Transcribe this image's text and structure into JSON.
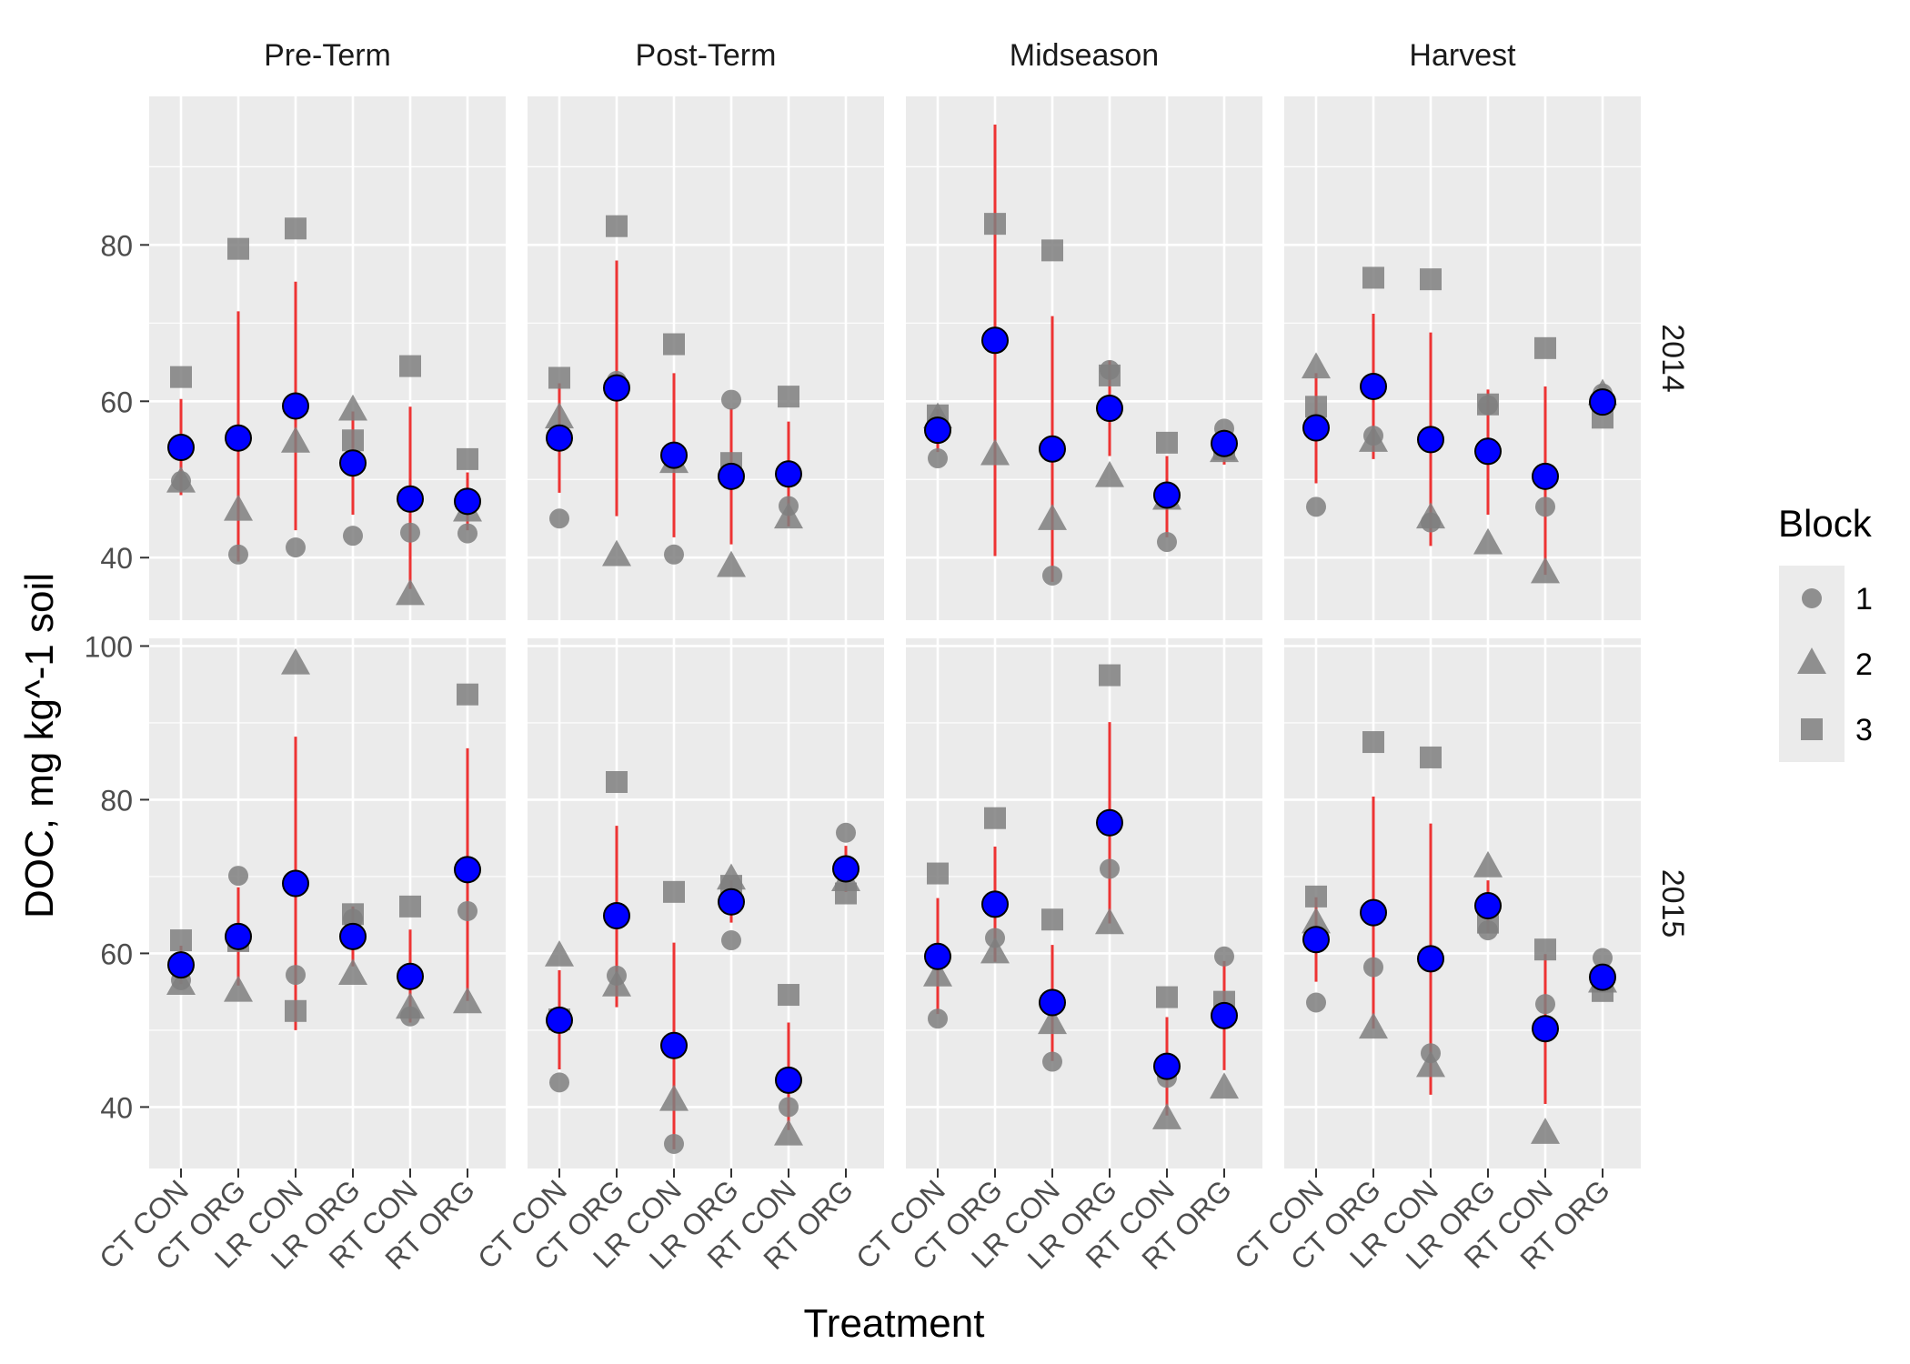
{
  "chart_data": {
    "type": "scatter",
    "title": "",
    "xlabel": "Treatment",
    "ylabel": "DOC, mg kg^-1 soil",
    "categories": [
      "CT CON",
      "CT ORG",
      "LR CON",
      "LR ORG",
      "RT CON",
      "RT ORG"
    ],
    "facet_columns": [
      "Pre-Term",
      "Post-Term",
      "Midseason",
      "Harvest"
    ],
    "facet_rows": [
      "2014",
      "2015"
    ],
    "row_ylim": {
      "2014": [
        32,
        99
      ],
      "2015": [
        32,
        101
      ]
    },
    "row_yticks": {
      "2014": [
        40,
        60,
        80
      ],
      "2015": [
        40,
        60,
        80,
        100
      ]
    },
    "grid": true,
    "legend": {
      "title": "Block",
      "position": "right",
      "entries": [
        {
          "label": "1",
          "shape": "circle"
        },
        {
          "label": "2",
          "shape": "triangle"
        },
        {
          "label": "3",
          "shape": "square"
        }
      ]
    },
    "colors": {
      "panel_background": "#ebebeb",
      "grid": "#ffffff",
      "block_points": "#7f7f7f",
      "mean_fill": "#0000ff",
      "error_bar": "#ee3333"
    },
    "panels": [
      {
        "row": "2014",
        "column": "Pre-Term",
        "block1": [
          49.8,
          40.4,
          41.3,
          42.8,
          43.2,
          43.1
        ],
        "block2": [
          49.6,
          46.0,
          54.7,
          58.8,
          35.2,
          45.9
        ],
        "block3": [
          63.1,
          79.5,
          82.1,
          55.0,
          64.5,
          52.6
        ],
        "mean": [
          54.1,
          55.3,
          59.4,
          52.1,
          47.5,
          47.2
        ],
        "lower": [
          48.0,
          39.5,
          43.5,
          45.5,
          36.0,
          43.5
        ],
        "upper": [
          60.3,
          71.5,
          75.3,
          58.7,
          59.3,
          50.9
        ]
      },
      {
        "row": "2014",
        "column": "Post-Term",
        "block1": [
          45.0,
          62.6,
          40.4,
          60.2,
          46.6,
          null
        ],
        "block2": [
          57.8,
          40.2,
          52.1,
          38.8,
          45.0,
          null
        ],
        "block3": [
          63.0,
          82.4,
          67.3,
          52.1,
          60.6,
          null
        ],
        "mean": [
          55.3,
          61.7,
          53.1,
          50.4,
          50.7,
          null
        ],
        "lower": [
          48.3,
          45.3,
          42.6,
          41.7,
          44.0,
          null
        ],
        "upper": [
          62.3,
          78.0,
          63.6,
          59.1,
          57.4,
          null
        ]
      },
      {
        "row": "2014",
        "column": "Midseason",
        "block1": [
          52.7,
          null,
          37.7,
          64.0,
          42.0,
          56.5
        ],
        "block2": [
          57.8,
          53.1,
          44.8,
          50.3,
          47.4,
          53.5
        ],
        "block3": [
          58.2,
          82.7,
          79.3,
          63.3,
          54.7,
          53.9
        ],
        "mean": [
          56.3,
          67.8,
          53.9,
          59.1,
          48.0,
          54.6
        ],
        "lower": [
          53.5,
          40.2,
          36.9,
          53.0,
          42.6,
          51.9
        ],
        "upper": [
          59.0,
          95.4,
          70.9,
          65.2,
          53.0,
          56.4
        ]
      },
      {
        "row": "2014",
        "column": "Harvest",
        "block1": [
          46.5,
          55.6,
          44.5,
          59.5,
          46.5,
          61.0
        ],
        "block2": [
          64.2,
          54.8,
          45.0,
          41.7,
          38.0,
          60.8
        ],
        "block3": [
          59.3,
          75.8,
          75.6,
          59.6,
          66.8,
          57.9
        ],
        "mean": [
          56.6,
          61.9,
          55.1,
          53.6,
          50.4,
          59.9
        ],
        "lower": [
          49.5,
          52.6,
          41.5,
          45.5,
          37.8,
          58.2
        ],
        "upper": [
          63.6,
          71.2,
          68.8,
          61.5,
          61.9,
          61.0
        ]
      },
      {
        "row": "2015",
        "column": "Pre-Term",
        "block1": [
          56.5,
          70.1,
          57.2,
          64.5,
          51.8,
          65.5
        ],
        "block2": [
          55.9,
          55.0,
          97.6,
          57.2,
          52.8,
          53.5
        ],
        "block3": [
          61.7,
          61.6,
          52.5,
          65.1,
          66.1,
          93.7
        ],
        "mean": [
          58.5,
          62.2,
          69.1,
          62.2,
          57.0,
          70.9
        ],
        "lower": [
          56.0,
          55.8,
          50.0,
          58.3,
          51.0,
          53.8
        ],
        "upper": [
          61.0,
          68.6,
          88.2,
          66.1,
          63.1,
          86.7
        ]
      },
      {
        "row": "2015",
        "column": "Post-Term",
        "block1": [
          43.2,
          57.1,
          35.2,
          61.7,
          40.0,
          75.7
        ],
        "block2": [
          59.6,
          55.7,
          40.8,
          69.6,
          36.3,
          69.4
        ],
        "block3": [
          51.4,
          82.3,
          68.0,
          68.8,
          54.6,
          67.8
        ],
        "mean": [
          51.3,
          64.9,
          48.0,
          66.7,
          43.5,
          71.0
        ],
        "lower": [
          44.9,
          53.0,
          34.5,
          64.0,
          37.0,
          68.0
        ],
        "upper": [
          57.8,
          76.6,
          61.4,
          69.5,
          51.0,
          74.0
        ]
      },
      {
        "row": "2015",
        "column": "Midseason",
        "block1": [
          51.5,
          62.0,
          45.9,
          71.0,
          43.8,
          59.6
        ],
        "block2": [
          57.0,
          60.0,
          50.8,
          63.8,
          38.4,
          42.4
        ],
        "block3": [
          70.4,
          77.6,
          64.4,
          96.2,
          54.3,
          53.7
        ],
        "mean": [
          59.6,
          66.4,
          53.6,
          77.0,
          45.3,
          51.9
        ],
        "lower": [
          52.1,
          58.9,
          46.0,
          63.9,
          38.9,
          44.8
        ],
        "upper": [
          67.2,
          73.9,
          61.1,
          90.1,
          51.7,
          59.0
        ]
      },
      {
        "row": "2015",
        "column": "Harvest",
        "block1": [
          53.6,
          58.2,
          47.0,
          63.0,
          53.4,
          59.4
        ],
        "block2": [
          63.9,
          50.2,
          45.2,
          71.2,
          36.5,
          56.2
        ],
        "block3": [
          67.4,
          87.5,
          85.5,
          64.0,
          60.5,
          55.1
        ],
        "mean": [
          61.8,
          65.3,
          59.3,
          66.2,
          50.2,
          56.9
        ],
        "lower": [
          56.3,
          50.2,
          41.6,
          62.6,
          40.4,
          55.7
        ],
        "upper": [
          67.3,
          80.4,
          76.9,
          69.5,
          59.9,
          58.0
        ]
      }
    ]
  }
}
